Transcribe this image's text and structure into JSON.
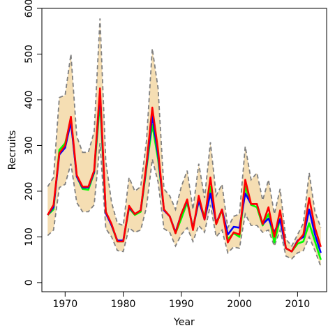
{
  "chart_data": {
    "type": "line",
    "title": "",
    "xlabel": "Year",
    "ylabel": "Recruits",
    "xlim": [
      1966,
      2015
    ],
    "ylim": [
      -20,
      600
    ],
    "xticks": [
      1970,
      1980,
      1990,
      2000,
      2010
    ],
    "yticks": [
      0,
      100,
      200,
      300,
      400,
      500,
      600
    ],
    "grid": false,
    "legend": "none",
    "x": [
      1967,
      1968,
      1969,
      1970,
      1971,
      1972,
      1973,
      1974,
      1975,
      1976,
      1977,
      1978,
      1979,
      1980,
      1981,
      1982,
      1983,
      1984,
      1985,
      1986,
      1987,
      1988,
      1989,
      1990,
      1991,
      1992,
      1993,
      1994,
      1995,
      1996,
      1997,
      1998,
      1999,
      2000,
      2001,
      2002,
      2003,
      2004,
      2005,
      2006,
      2007,
      2008,
      2009,
      2010,
      2011,
      2012,
      2013,
      2014
    ],
    "band": {
      "color": "#f5deb3",
      "edge_color": "#808080",
      "lower": [
        103,
        115,
        208,
        215,
        260,
        175,
        155,
        155,
        170,
        305,
        118,
        100,
        70,
        68,
        120,
        110,
        115,
        165,
        270,
        220,
        118,
        110,
        80,
        105,
        120,
        90,
        125,
        110,
        170,
        100,
        115,
        65,
        78,
        75,
        150,
        125,
        125,
        110,
        115,
        80,
        115,
        58,
        52,
        65,
        70,
        100,
        70,
        35
      ],
      "upper": [
        210,
        230,
        405,
        410,
        500,
        320,
        285,
        285,
        330,
        578,
        265,
        175,
        130,
        125,
        230,
        200,
        210,
        310,
        512,
        425,
        205,
        190,
        160,
        210,
        245,
        160,
        260,
        185,
        307,
        190,
        215,
        120,
        145,
        150,
        298,
        225,
        240,
        180,
        225,
        150,
        205,
        95,
        80,
        105,
        130,
        240,
        155,
        120
      ]
    },
    "series": [
      {
        "color": "#00ff00",
        "values": [
          148,
          160,
          290,
          305,
          355,
          232,
          205,
          203,
          240,
          395,
          155,
          125,
          90,
          90,
          163,
          148,
          155,
          250,
          345,
          270,
          160,
          145,
          108,
          140,
          175,
          120,
          178,
          145,
          210,
          128,
          158,
          95,
          108,
          100,
          210,
          170,
          165,
          125,
          150,
          88,
          140,
          75,
          68,
          85,
          90,
          130,
          90,
          50
        ]
      },
      {
        "color": "#0000ff",
        "values": [
          148,
          165,
          280,
          295,
          352,
          232,
          208,
          208,
          242,
          415,
          152,
          125,
          92,
          92,
          165,
          150,
          158,
          255,
          365,
          280,
          158,
          145,
          110,
          150,
          180,
          118,
          180,
          138,
          195,
          130,
          160,
          105,
          122,
          120,
          195,
          172,
          172,
          128,
          140,
          110,
          138,
          75,
          68,
          92,
          100,
          160,
          105,
          65
        ]
      },
      {
        "color": "#ff0000",
        "values": [
          148,
          170,
          283,
          300,
          363,
          235,
          210,
          210,
          245,
          425,
          155,
          128,
          90,
          90,
          168,
          150,
          158,
          260,
          383,
          290,
          160,
          145,
          108,
          150,
          182,
          115,
          190,
          138,
          230,
          128,
          160,
          88,
          110,
          105,
          225,
          172,
          172,
          128,
          165,
          100,
          158,
          75,
          68,
          90,
          105,
          185,
          120,
          78
        ]
      }
    ]
  }
}
